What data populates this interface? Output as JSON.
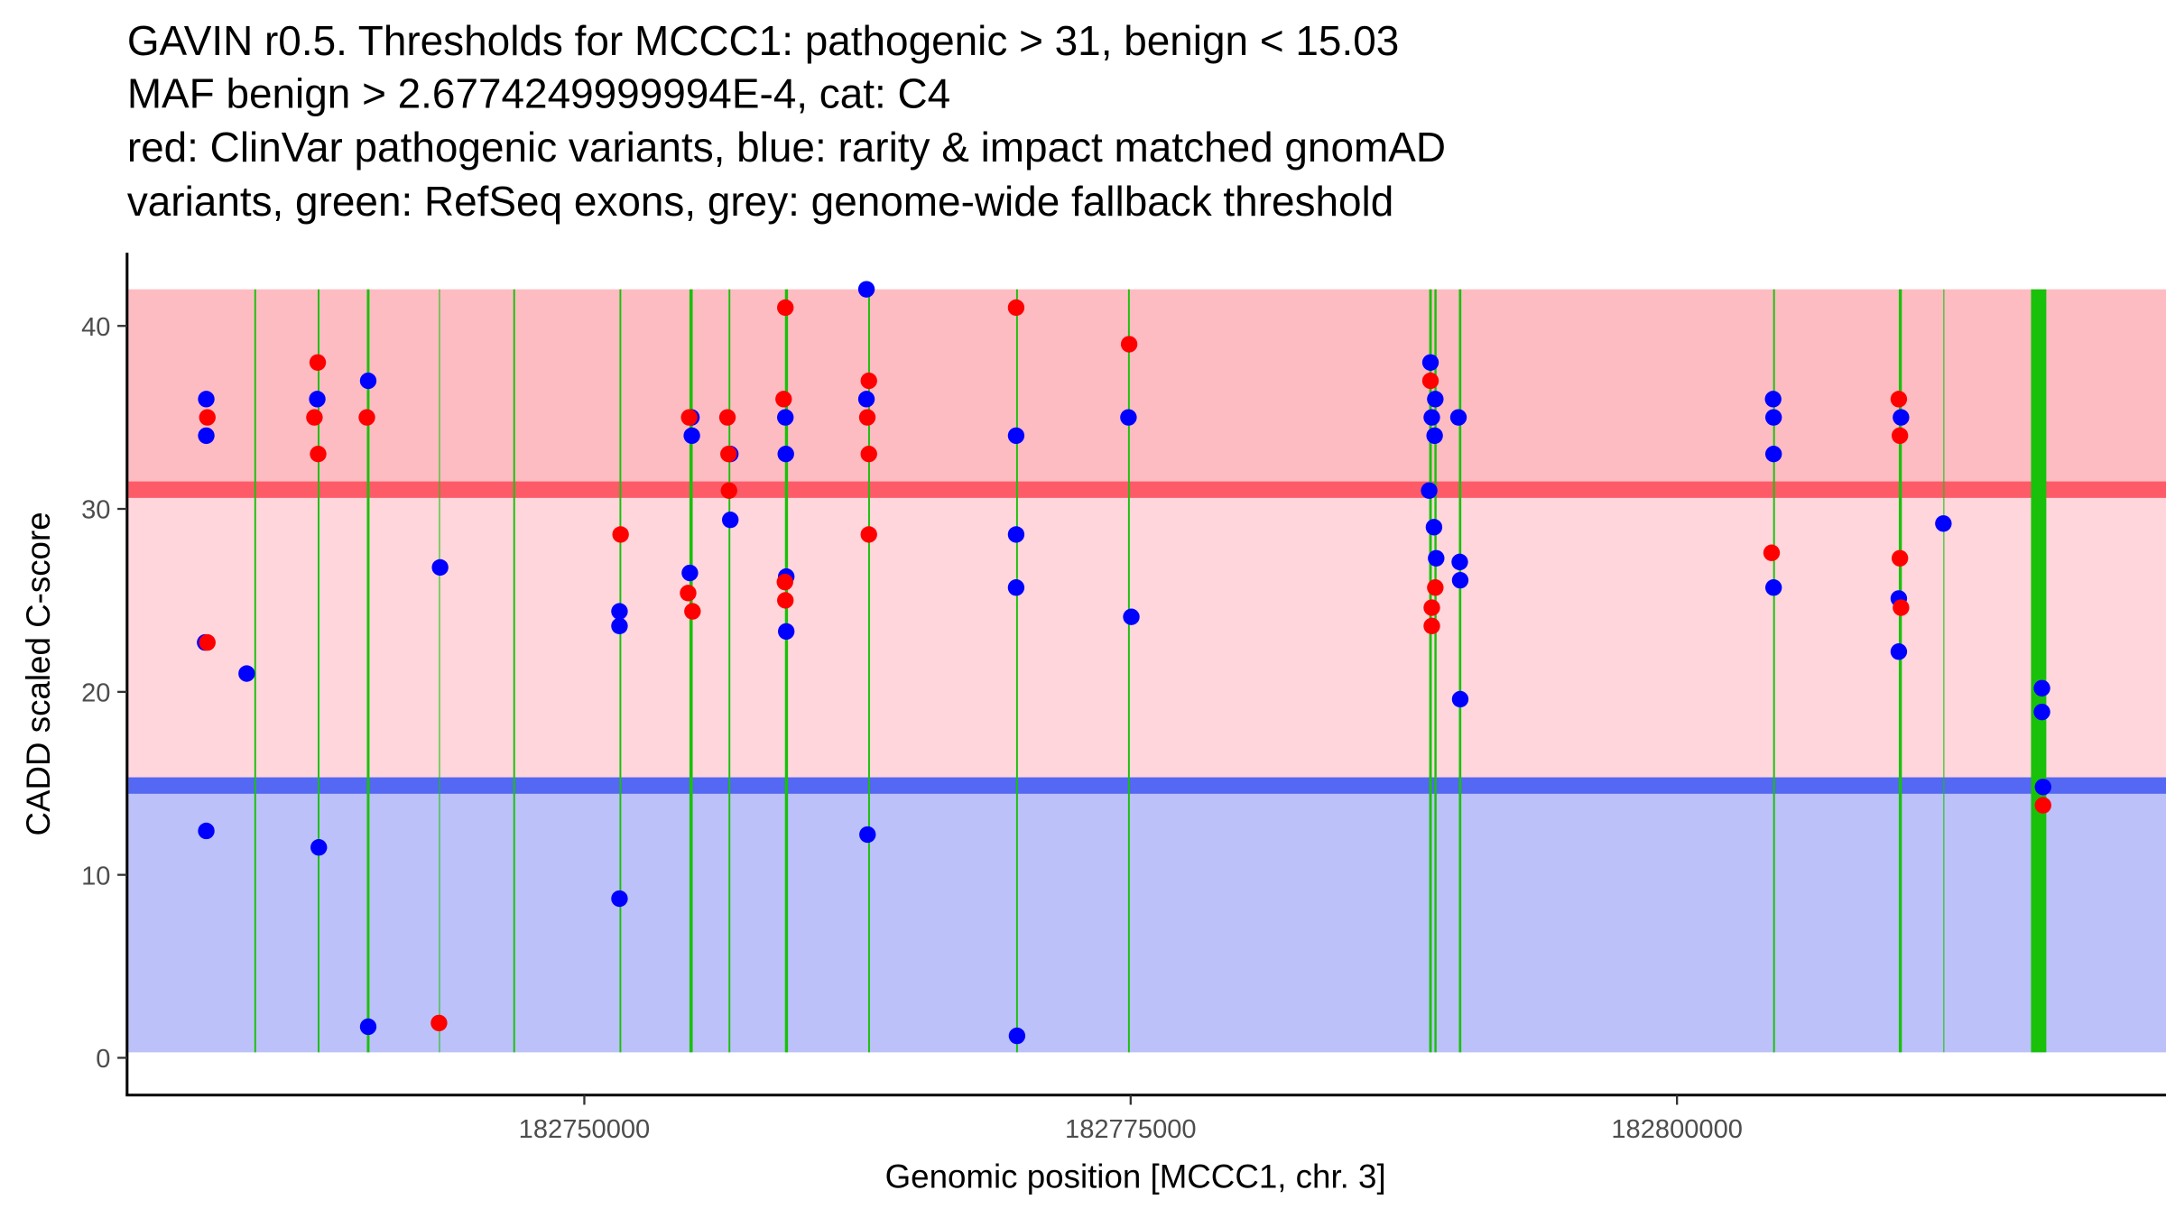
{
  "chart_data": {
    "type": "scatter",
    "title_lines": [
      "GAVIN r0.5. Thresholds for MCCC1: pathogenic > 31, benign < 15.03",
      "MAF benign > 2.6774249999994E-4, cat: C4",
      "red: ClinVar pathogenic variants, blue: rarity & impact matched gnomAD",
      "variants, green: RefSeq exons, grey: genome-wide fallback threshold"
    ],
    "xlabel": "Genomic position [MCCC1, chr. 3]",
    "ylabel": "CADD scaled C-score",
    "x_ticks": [
      182750000,
      182775000,
      182800000
    ],
    "x_tick_labels": [
      "182750000",
      "182775000",
      "182800000"
    ],
    "y_ticks": [
      0,
      10,
      20,
      30,
      40
    ],
    "y_tick_labels": [
      "0",
      "10",
      "20",
      "30",
      "40"
    ],
    "xlim": [
      182729000,
      182843000
    ],
    "ylim": [
      -2,
      44
    ],
    "grid": false,
    "legend": "none",
    "thresholds": {
      "pathogenic": 31,
      "benign": 15.03,
      "shade_top": 42
    },
    "colors": {
      "pathogenic_zone": "#fdbcc2",
      "middle_zone": "#fed6db",
      "benign_zone": "#bcc1f9",
      "pathogenic_line": "#fe5b69",
      "benign_line": "#5468f3",
      "exon": "#19c10a",
      "clinvar": "#ff0000",
      "gnomad": "#0000ff"
    },
    "exons": [
      {
        "start": 182734900,
        "end": 182734980
      },
      {
        "start": 182737800,
        "end": 182737880
      },
      {
        "start": 182740050,
        "end": 182740170
      },
      {
        "start": 182743350,
        "end": 182743380
      },
      {
        "start": 182746750,
        "end": 182746830
      },
      {
        "start": 182751610,
        "end": 182751690
      },
      {
        "start": 182754810,
        "end": 182754960
      },
      {
        "start": 182756600,
        "end": 182756680
      },
      {
        "start": 182759180,
        "end": 182759320
      },
      {
        "start": 182762990,
        "end": 182763070
      },
      {
        "start": 182769760,
        "end": 182769840
      },
      {
        "start": 182774880,
        "end": 182774960
      },
      {
        "start": 182788660,
        "end": 182788780
      },
      {
        "start": 182788900,
        "end": 182789000
      },
      {
        "start": 182790020,
        "end": 182790130
      },
      {
        "start": 182804400,
        "end": 182804480
      },
      {
        "start": 182810150,
        "end": 182810290
      },
      {
        "start": 182812190,
        "end": 182812220
      },
      {
        "start": 182816200,
        "end": 182816900
      }
    ],
    "series": [
      {
        "name": "ClinVar pathogenic variants",
        "color": "#ff0000",
        "points": [
          [
            182732750,
            35
          ],
          [
            182732750,
            22.7
          ],
          [
            182737800,
            38
          ],
          [
            182737650,
            35
          ],
          [
            182737820,
            33
          ],
          [
            182740050,
            35
          ],
          [
            182743350,
            1.9
          ],
          [
            182751660,
            28.6
          ],
          [
            182754800,
            35
          ],
          [
            182754750,
            25.4
          ],
          [
            182754950,
            24.4
          ],
          [
            182756550,
            35
          ],
          [
            182756600,
            33
          ],
          [
            182756620,
            31
          ],
          [
            182759200,
            41
          ],
          [
            182759120,
            36
          ],
          [
            182759180,
            26
          ],
          [
            182759200,
            25
          ],
          [
            182763020,
            37
          ],
          [
            182762950,
            35
          ],
          [
            182763020,
            33
          ],
          [
            182763020,
            28.6
          ],
          [
            182769760,
            41
          ],
          [
            182774930,
            39
          ],
          [
            182788720,
            37
          ],
          [
            182788940,
            25.7
          ],
          [
            182788780,
            24.6
          ],
          [
            182788780,
            23.6
          ],
          [
            182804330,
            27.6
          ],
          [
            182810150,
            36
          ],
          [
            182810200,
            34
          ],
          [
            182810200,
            27.3
          ],
          [
            182810250,
            24.6
          ],
          [
            182816750,
            13.8
          ]
        ]
      },
      {
        "name": "rarity & impact matched gnomAD variants",
        "color": "#0000ff",
        "points": [
          [
            182732700,
            36
          ],
          [
            182732700,
            34
          ],
          [
            182732650,
            22.7
          ],
          [
            182732700,
            12.4
          ],
          [
            182734550,
            21
          ],
          [
            182737780,
            36
          ],
          [
            182737850,
            11.5
          ],
          [
            182740110,
            37
          ],
          [
            182740110,
            1.7
          ],
          [
            182743400,
            26.8
          ],
          [
            182751610,
            24.4
          ],
          [
            182751610,
            23.6
          ],
          [
            182751610,
            8.7
          ],
          [
            182754900,
            35
          ],
          [
            182754920,
            34
          ],
          [
            182754830,
            26.5
          ],
          [
            182756680,
            33
          ],
          [
            182756680,
            29.4
          ],
          [
            182759200,
            35
          ],
          [
            182759220,
            33
          ],
          [
            182759240,
            26.3
          ],
          [
            182759240,
            23.3
          ],
          [
            182762910,
            42
          ],
          [
            182762910,
            36
          ],
          [
            182762960,
            12.2
          ],
          [
            182769760,
            34
          ],
          [
            182769760,
            28.6
          ],
          [
            182769760,
            25.7
          ],
          [
            182769800,
            1.2
          ],
          [
            182774900,
            35
          ],
          [
            182775030,
            24.1
          ],
          [
            182788720,
            38
          ],
          [
            182788940,
            36
          ],
          [
            182788780,
            35
          ],
          [
            182788910,
            34
          ],
          [
            182788660,
            31
          ],
          [
            182788880,
            29
          ],
          [
            182788980,
            27.3
          ],
          [
            182790000,
            35
          ],
          [
            182790060,
            27.1
          ],
          [
            182790080,
            26.1
          ],
          [
            182790080,
            19.6
          ],
          [
            182804400,
            36
          ],
          [
            182804420,
            35
          ],
          [
            182804420,
            33
          ],
          [
            182804420,
            25.7
          ],
          [
            182810250,
            35
          ],
          [
            182810150,
            25.1
          ],
          [
            182810150,
            22.2
          ],
          [
            182812190,
            29.2
          ],
          [
            182816700,
            20.2
          ],
          [
            182816700,
            18.9
          ],
          [
            182816750,
            14.8
          ]
        ]
      }
    ]
  }
}
